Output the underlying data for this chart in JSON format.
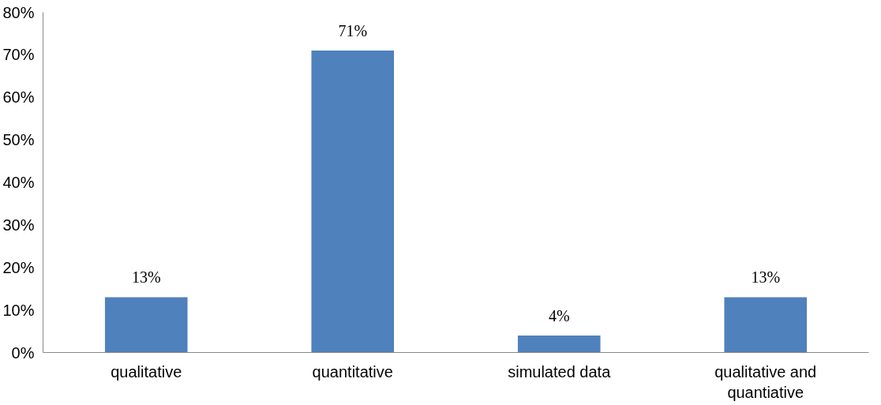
{
  "chart_data": {
    "type": "bar",
    "categories": [
      "qualitative",
      "quantitative",
      "simulated data",
      "qualitative and quantiative"
    ],
    "values": [
      13,
      71,
      4,
      13
    ],
    "value_labels": [
      "13%",
      "71%",
      "4%",
      "13%"
    ],
    "color": "#4f81bd",
    "ylim": [
      0,
      80
    ],
    "yticks": [
      {
        "value": 0,
        "label": "0%"
      },
      {
        "value": 10,
        "label": "10%"
      },
      {
        "value": 20,
        "label": "20%"
      },
      {
        "value": 30,
        "label": "30%"
      },
      {
        "value": 40,
        "label": "40%"
      },
      {
        "value": 50,
        "label": "50%"
      },
      {
        "value": 60,
        "label": "60%"
      },
      {
        "value": 70,
        "label": "70%"
      },
      {
        "value": 80,
        "label": "80%"
      }
    ],
    "grid": false
  }
}
